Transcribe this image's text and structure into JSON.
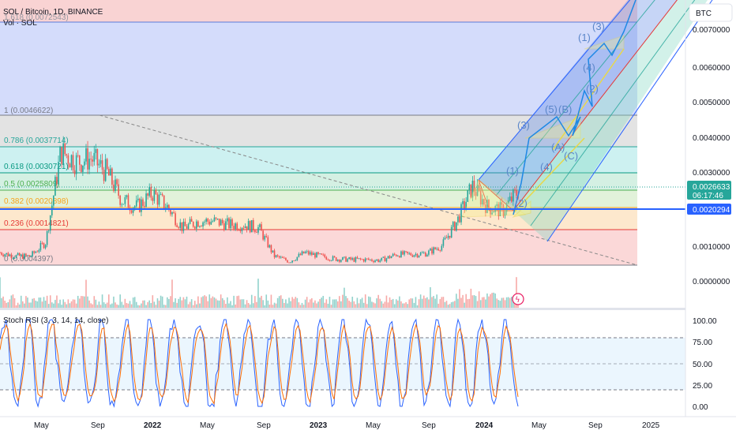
{
  "header": {
    "title": "SOL / Bitcoin, 1D, BINANCE",
    "volume_label": "Vol · SOL"
  },
  "currency_button": "BTC",
  "price_axis": {
    "ticks": [
      "0.0070000",
      "0.0060000",
      "0.0050000",
      "0.0040000",
      "0.0030000",
      "0.0010000",
      "0.0000000"
    ]
  },
  "last_price": {
    "value": "0.0026633",
    "countdown": "06:17:46",
    "color": "#26a69a"
  },
  "line_price": {
    "value": "0.0020294",
    "color": "#2962ff"
  },
  "fib_levels": [
    {
      "label": "1.618 (0.0072543)",
      "color": "#9598a1"
    },
    {
      "label": "1 (0.0046622)",
      "color": "#787b86"
    },
    {
      "label": "0.786 (0.0037714)",
      "color": "#26a69a"
    },
    {
      "label": "0.618 (0.0030721)",
      "color": "#089981"
    },
    {
      "label": "0.5 (0.0025809)",
      "color": "#4caf50"
    },
    {
      "label": "0.382 (0.0020898)",
      "color": "#f7a21b"
    },
    {
      "label": "0.236 (0.0014821)",
      "color": "#e53935"
    },
    {
      "label": "0 (0.0004397)",
      "color": "#787b86"
    }
  ],
  "waves": [
    "(1)",
    "(2)",
    "(3)",
    "(4)",
    "(5)",
    "(1)",
    "(2)",
    "(3)",
    "(4)",
    "(A)",
    "(B)",
    "(C)"
  ],
  "time_axis": [
    "May",
    "Sep",
    "2022",
    "May",
    "Sep",
    "2023",
    "May",
    "Sep",
    "2024",
    "May",
    "Sep",
    "2025"
  ],
  "rsi": {
    "label": "Stoch RSI (3, 3, 14, 14, close)",
    "ticks": [
      "100.00",
      "75.00",
      "50.00",
      "25.00",
      "0.00"
    ],
    "k_color": "#2962ff",
    "d_color": "#ff6d00"
  },
  "chart_data": {
    "type": "line",
    "title": "SOL / Bitcoin, 1D, BINANCE",
    "x": [
      "2021-05",
      "2021-06",
      "2021-07",
      "2021-08",
      "2021-09",
      "2021-10",
      "2021-11",
      "2021-12",
      "2022-01",
      "2022-02",
      "2022-03",
      "2022-04",
      "2022-05",
      "2022-06",
      "2022-07",
      "2022-08",
      "2022-09",
      "2022-10",
      "2022-11",
      "2022-12",
      "2023-01",
      "2023-02",
      "2023-03",
      "2023-04",
      "2023-05",
      "2023-06",
      "2023-07",
      "2023-08",
      "2023-09",
      "2023-10",
      "2023-11",
      "2023-12",
      "2024-01",
      "2024-02",
      "2024-03"
    ],
    "series": [
      {
        "name": "SOL / Bitcoin",
        "values": [
          0.0009,
          0.0008,
          0.0008,
          0.0012,
          0.0038,
          0.0035,
          0.0036,
          0.0032,
          0.0024,
          0.0022,
          0.0026,
          0.0022,
          0.0016,
          0.0018,
          0.0018,
          0.0017,
          0.0017,
          0.0016,
          0.0008,
          0.00065,
          0.0009,
          0.0008,
          0.00072,
          0.0007,
          0.0007,
          0.00068,
          0.00085,
          0.00085,
          0.00088,
          0.0011,
          0.0018,
          0.0028,
          0.0022,
          0.0021,
          0.0026633
        ]
      }
    ],
    "ylabel": "BTC",
    "ylim": [
      -0.0005,
      0.0078
    ],
    "grid": true
  }
}
